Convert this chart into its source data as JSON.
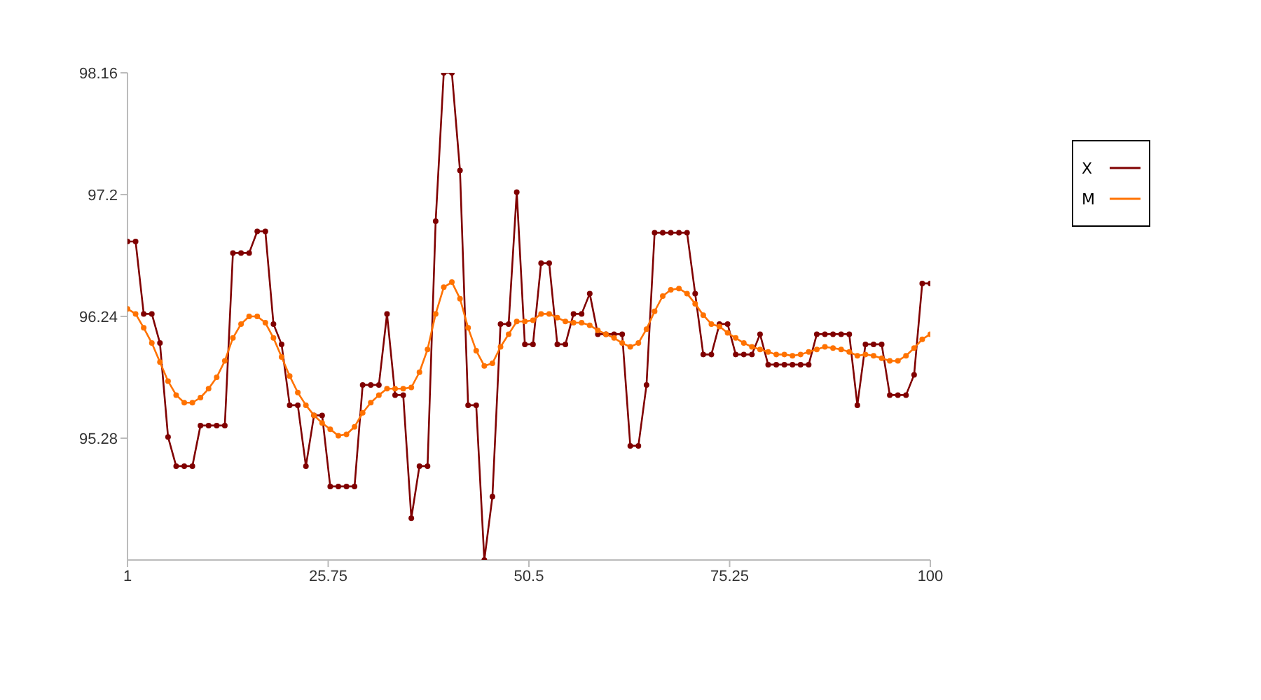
{
  "chart_data": {
    "type": "line",
    "x": [
      1,
      2,
      3,
      4,
      5,
      6,
      7,
      8,
      9,
      10,
      11,
      12,
      13,
      14,
      15,
      16,
      17,
      18,
      19,
      20,
      21,
      22,
      23,
      24,
      25,
      26,
      27,
      28,
      29,
      30,
      31,
      32,
      33,
      34,
      35,
      36,
      37,
      38,
      39,
      40,
      41,
      42,
      43,
      44,
      45,
      46,
      47,
      48,
      49,
      50,
      51,
      52,
      53,
      54,
      55,
      56,
      57,
      58,
      59,
      60,
      61,
      62,
      63,
      64,
      65,
      66,
      67,
      68,
      69,
      70,
      71,
      72,
      73,
      74,
      75,
      76,
      77,
      78,
      79,
      80,
      81,
      82,
      83,
      84,
      85,
      86,
      87,
      88,
      89,
      90,
      91,
      92,
      93,
      94,
      95,
      96,
      97,
      98,
      99,
      100
    ],
    "series": [
      {
        "name": "X",
        "color": "#800000",
        "values": [
          96.83,
          96.83,
          96.26,
          96.26,
          96.03,
          95.29,
          95.06,
          95.06,
          95.06,
          95.38,
          95.38,
          95.38,
          95.38,
          96.74,
          96.74,
          96.74,
          96.91,
          96.91,
          96.18,
          96.02,
          95.54,
          95.54,
          95.06,
          95.46,
          95.46,
          94.9,
          94.9,
          94.9,
          94.9,
          95.7,
          95.7,
          95.7,
          96.26,
          95.62,
          95.62,
          94.65,
          95.06,
          95.06,
          96.99,
          98.16,
          98.16,
          97.39,
          95.54,
          95.54,
          94.32,
          94.82,
          96.18,
          96.18,
          97.22,
          96.02,
          96.02,
          96.66,
          96.66,
          96.02,
          96.02,
          96.26,
          96.26,
          96.42,
          96.1,
          96.1,
          96.1,
          96.1,
          95.22,
          95.22,
          95.7,
          96.9,
          96.9,
          96.9,
          96.9,
          96.9,
          96.42,
          95.94,
          95.94,
          96.18,
          96.18,
          95.94,
          95.94,
          95.94,
          96.1,
          95.86,
          95.86,
          95.86,
          95.86,
          95.86,
          95.86,
          96.1,
          96.1,
          96.1,
          96.1,
          96.1,
          95.54,
          96.02,
          96.02,
          96.02,
          95.62,
          95.62,
          95.62,
          95.78,
          96.5,
          96.5
        ]
      },
      {
        "name": "M",
        "color": "#ff7200",
        "values": [
          96.3,
          96.26,
          96.15,
          96.03,
          95.88,
          95.73,
          95.62,
          95.56,
          95.56,
          95.6,
          95.67,
          95.76,
          95.89,
          96.07,
          96.18,
          96.24,
          96.24,
          96.19,
          96.07,
          95.92,
          95.77,
          95.64,
          95.54,
          95.46,
          95.4,
          95.35,
          95.3,
          95.31,
          95.37,
          95.48,
          95.56,
          95.62,
          95.67,
          95.67,
          95.67,
          95.68,
          95.8,
          95.98,
          96.26,
          96.47,
          96.51,
          96.38,
          96.15,
          95.97,
          95.85,
          95.87,
          96.0,
          96.1,
          96.2,
          96.2,
          96.21,
          96.26,
          96.26,
          96.23,
          96.2,
          96.19,
          96.19,
          96.17,
          96.13,
          96.1,
          96.07,
          96.03,
          96.0,
          96.03,
          96.14,
          96.28,
          96.4,
          96.45,
          96.46,
          96.42,
          96.34,
          96.25,
          96.18,
          96.16,
          96.11,
          96.07,
          96.03,
          96.0,
          95.98,
          95.96,
          95.94,
          95.94,
          95.93,
          95.94,
          95.96,
          95.98,
          96.0,
          95.99,
          95.98,
          95.96,
          95.93,
          95.94,
          95.93,
          95.91,
          95.89,
          95.89,
          95.93,
          95.99,
          96.06,
          96.1
        ]
      }
    ],
    "xlim": [
      1,
      100
    ],
    "xticks": [
      1,
      25.75,
      50.5,
      75.25,
      100
    ],
    "ylim": [
      94.32,
      98.16
    ],
    "yticks": [
      95.28,
      96.24,
      97.2,
      98.16
    ],
    "grid": false,
    "legend": "right",
    "marker": "circle",
    "line_style": "solid"
  }
}
